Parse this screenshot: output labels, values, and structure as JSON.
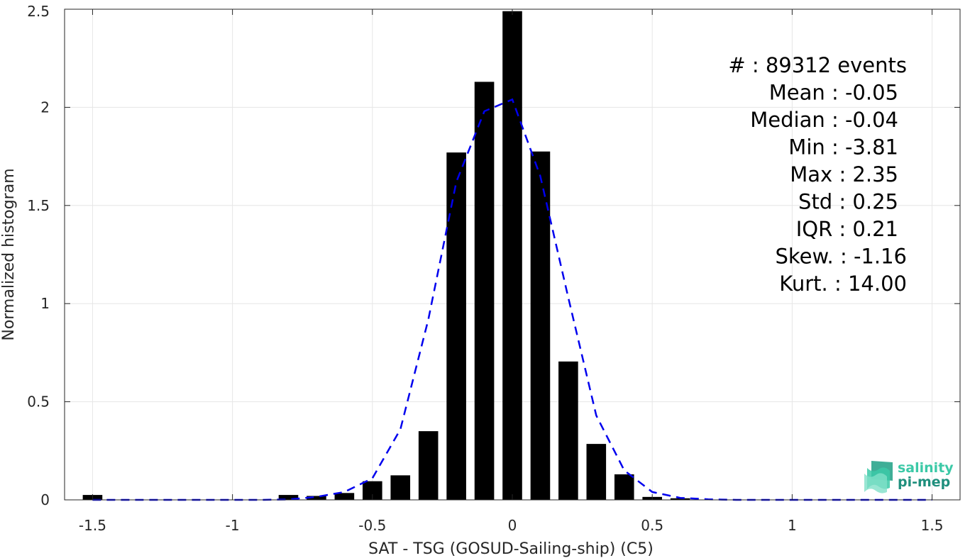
{
  "chart_data": {
    "type": "bar",
    "xlabel": "SAT - TSG (GOSUD-Sailing-ship) (C5)",
    "ylabel": "Normalized histogram",
    "xlim": [
      -1.6,
      1.6
    ],
    "ylim": [
      0,
      2.5
    ],
    "grid": true,
    "x_ticks": [
      -1.5,
      -1,
      -0.5,
      0,
      0.5,
      1,
      1.5
    ],
    "x_tick_labels": [
      "-1.5",
      "-1",
      "-0.5",
      "0",
      "0.5",
      "1",
      "1.5"
    ],
    "y_ticks": [
      0,
      0.5,
      1,
      1.5,
      2,
      2.5
    ],
    "y_tick_labels": [
      "0",
      "0.5",
      "1",
      "1.5",
      "2",
      "2.5"
    ],
    "bar_width": 0.07,
    "bar_color": "#000000",
    "series": [
      {
        "type": "bar",
        "x": [
          -1.5,
          -0.8,
          -0.7,
          -0.6,
          -0.5,
          -0.4,
          -0.3,
          -0.2,
          -0.1,
          0.0,
          0.1,
          0.2,
          0.3,
          0.4,
          0.5,
          0.6
        ],
        "values": [
          0.025,
          0.025,
          0.02,
          0.035,
          0.095,
          0.125,
          0.35,
          1.77,
          2.13,
          2.49,
          1.775,
          0.705,
          0.285,
          0.13,
          0.015,
          0.008
        ]
      },
      {
        "type": "line",
        "style": "dashed",
        "color": "#0000ee",
        "x": [
          -1.5,
          -1.4,
          -1.3,
          -1.2,
          -1.1,
          -1.0,
          -0.9,
          -0.8,
          -0.7,
          -0.6,
          -0.5,
          -0.4,
          -0.3,
          -0.2,
          -0.1,
          0.0,
          0.1,
          0.2,
          0.3,
          0.4,
          0.5,
          0.6,
          0.7,
          0.8,
          0.9,
          1.0,
          1.1,
          1.2,
          1.3,
          1.4,
          1.5
        ],
        "y": [
          0,
          0,
          0,
          0,
          0,
          0,
          0,
          0.002,
          0.015,
          0.04,
          0.11,
          0.36,
          0.92,
          1.62,
          1.98,
          2.04,
          1.65,
          1.03,
          0.43,
          0.15,
          0.04,
          0.01,
          0.003,
          0,
          0,
          0,
          0,
          0,
          0,
          0,
          0
        ]
      }
    ],
    "annotations": [
      "#  : 89312 events",
      "Mean : -0.05",
      "Median : -0.04",
      "Min : -3.81",
      "Max : 2.35",
      "Std : 0.25",
      "IQR : 0.21",
      "Skew. : -1.16",
      "Kurt. : 14.00"
    ]
  },
  "logo": {
    "line1": "salinity",
    "line2": "pi-mep",
    "color_light": "#3cc9a7",
    "color_dark": "#1f8f7d"
  }
}
